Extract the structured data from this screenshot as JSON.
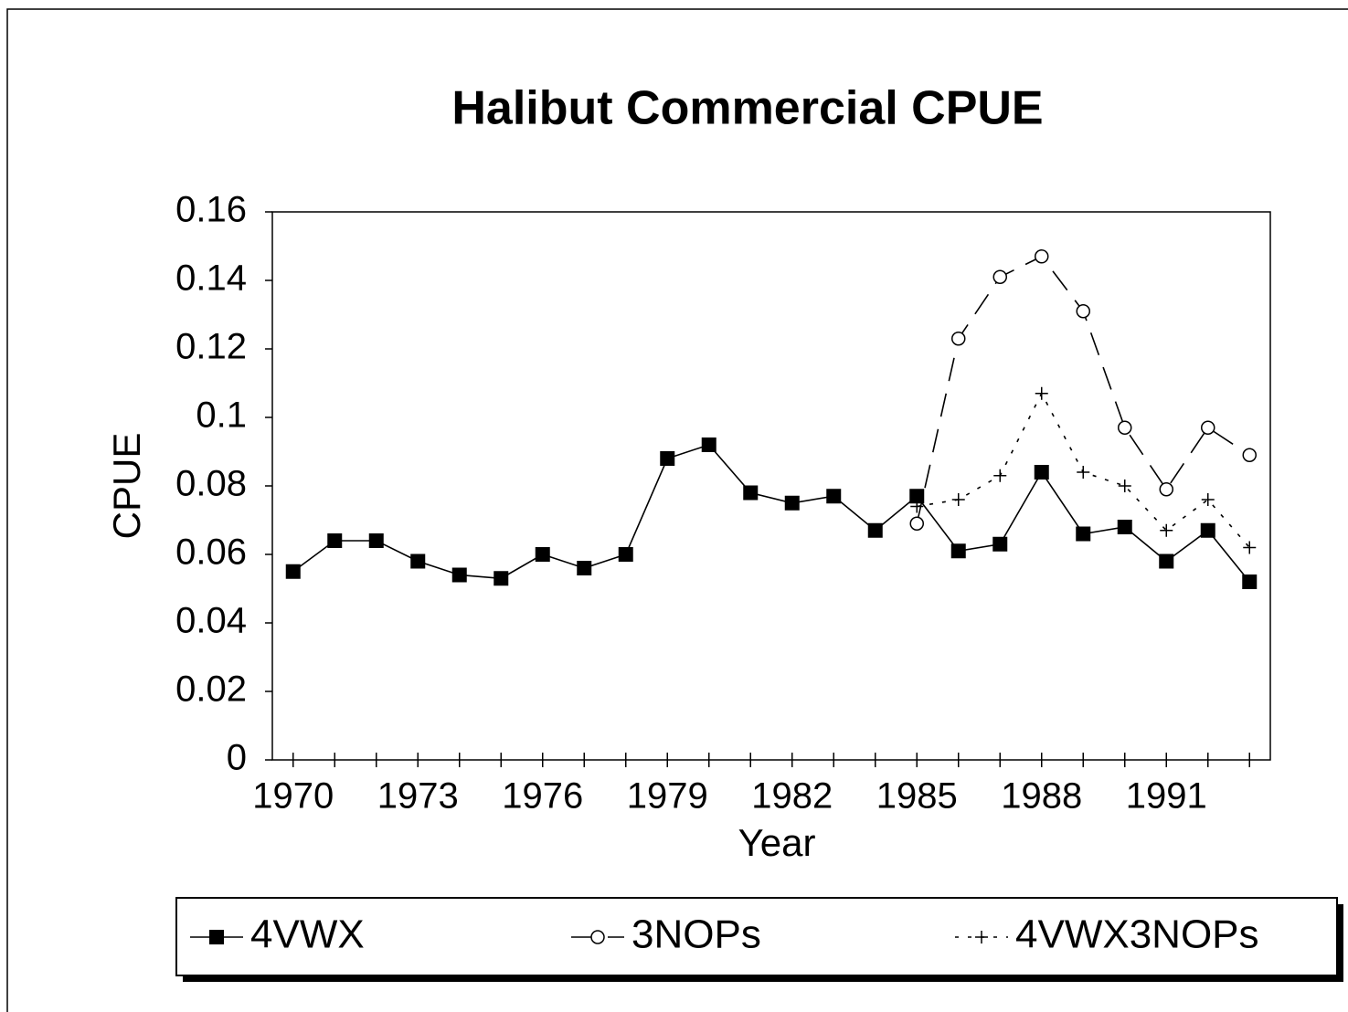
{
  "chart_data": {
    "type": "line",
    "title": "Halibut Commercial CPUE",
    "x_label": "Year",
    "y_label": "CPUE",
    "categories": [
      "1970",
      null,
      null,
      "1973",
      null,
      null,
      "1976",
      null,
      null,
      "1979",
      null,
      null,
      "1982",
      null,
      null,
      "1985",
      null,
      null,
      "1988",
      null,
      null,
      "1991",
      null,
      null
    ],
    "series": [
      {
        "name": "4VWX",
        "color": "#000000",
        "marker": "square",
        "line_style": "solid",
        "values": [
          0.055,
          0.064,
          0.064,
          0.058,
          0.054,
          0.053,
          0.06,
          0.056,
          0.06,
          0.088,
          0.092,
          0.078,
          0.075,
          0.077,
          0.067,
          0.077,
          0.061,
          0.063,
          0.084,
          0.066,
          0.068,
          0.058,
          0.067,
          0.052
        ]
      },
      {
        "name": "3NOPs",
        "color": "#000000",
        "marker": "circle",
        "line_style": "dashed",
        "values": [
          null,
          null,
          null,
          null,
          null,
          null,
          null,
          null,
          null,
          null,
          null,
          null,
          null,
          null,
          null,
          0.069,
          0.123,
          0.141,
          0.147,
          0.131,
          0.097,
          0.079,
          0.097,
          0.089
        ]
      },
      {
        "name": "4VWX3NOPs",
        "color": "#000000",
        "marker": "plus",
        "line_style": "dotted",
        "values": [
          null,
          null,
          null,
          null,
          null,
          null,
          null,
          null,
          null,
          null,
          null,
          null,
          null,
          null,
          null,
          0.074,
          0.076,
          0.083,
          0.107,
          0.084,
          0.08,
          0.067,
          0.076,
          0.062
        ]
      }
    ],
    "ylim": [
      0,
      0.16
    ],
    "yticks": [
      0,
      0.02,
      0.04,
      0.06,
      0.08,
      0.1,
      0.12,
      0.14,
      0.16
    ],
    "grid": false,
    "legend": "bottom"
  }
}
